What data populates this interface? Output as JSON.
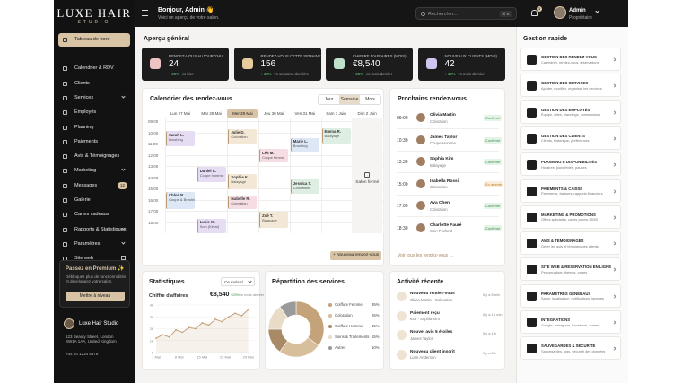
{
  "sidebar": {
    "logo": "LUXE HAIR",
    "logo_subtitle": "STUDIO",
    "nav": [
      "Tableau de bord",
      "Calendrier & RDV",
      "Clients",
      "Services",
      "Employés",
      "Planning",
      "Paiements",
      "Avis & Témoignages",
      "Marketing",
      "Messages",
      "Galerie",
      "Cartes cadeaux",
      "Rapports & Statistiques",
      "Paramètres",
      "Site web"
    ],
    "messages_badge": "12",
    "premium": {
      "title": "Passez en Premium ✨",
      "text": "Débloquez plus de fonctionnalités et développez votre salon.",
      "button": "Mettre à niveau"
    },
    "salon": {
      "name": "Luxe Hair Studio",
      "address": "123 Beauty Street, London SW1A 1AA, United Kingdom",
      "phone": "+44 20 1234 5678"
    }
  },
  "topbar": {
    "greeting": "Bonjour, Admin 👋",
    "subtitle": "Voici un aperçu de votre salon.",
    "search": "Rechercher...",
    "shortcut": "⌘ K",
    "notifications": "3",
    "user": "Admin",
    "role": "Propriétaire"
  },
  "overview": {
    "title": "Aperçu général",
    "stats": [
      {
        "label": "RENDEZ-VOUS AUJOURD'HUI",
        "value": "24",
        "change": "↑ 20%",
        "note": "vs hier"
      },
      {
        "label": "RENDEZ-VOUS CETTE SEMAINE",
        "value": "156",
        "change": "↑ 18%",
        "note": "vs semaine dernière"
      },
      {
        "label": "CHIFFRE D'AFFAIRES (MOIS)",
        "value": "€8,540",
        "change": "↑ 25%",
        "note": "vs mois dernier"
      },
      {
        "label": "NOUVEAUX CLIENTS (MOIS)",
        "value": "42",
        "change": "↑ 12%",
        "note": "vs mois dernier"
      }
    ]
  },
  "calendar": {
    "title": "Calendrier des rendez-vous",
    "views": [
      "Jour",
      "Semaine",
      "Mois"
    ],
    "days": [
      "Lun 27 Mai",
      "Mar 28 Mai",
      "Mer 29 Mai",
      "Jeu 30 Mai",
      "Ven 31 Mai",
      "Sam 1 Juin",
      "Dim 2 Juin"
    ],
    "hours": [
      "09:00",
      "10:00",
      "11:00",
      "12:00",
      "13:00",
      "14:00",
      "15:00",
      "16:00",
      "17:00",
      "18:00"
    ],
    "closed": "Salon fermé",
    "events": [
      {
        "name": "Sarah L.",
        "service": "Brushing"
      },
      {
        "name": "Julie D.",
        "service": "Coloration"
      },
      {
        "name": "Emma R.",
        "service": "Balayage"
      },
      {
        "name": "Marie L.",
        "service": "Brushing"
      },
      {
        "name": "Léa M.",
        "service": "Coupe femme"
      },
      {
        "name": "Daniel K.",
        "service": "Coupe homme"
      },
      {
        "name": "Sophie K.",
        "service": "Balayage"
      },
      {
        "name": "Jessica T.",
        "service": "Coloration"
      },
      {
        "name": "Chloé B.",
        "service": "Coupe & Brushing"
      },
      {
        "name": "Isabelle R.",
        "service": "Coloration"
      },
      {
        "name": "Lucie M.",
        "service": "Soin (Kérat)"
      },
      {
        "name": "Zoé T.",
        "service": "Balayage"
      }
    ],
    "button": "+ Nouveau rendez-vous"
  },
  "upcoming": {
    "title": "Prochains rendez-vous",
    "items": [
      {
        "time": "09:00",
        "name": "Olivia Martin",
        "service": "Coloration",
        "status": "Confirmé"
      },
      {
        "time": "10:30",
        "name": "James Taylor",
        "service": "Coupe Homme",
        "status": "Confirmé"
      },
      {
        "time": "13:30",
        "name": "Sophia Kim",
        "service": "Balayage",
        "status": "Confirmé"
      },
      {
        "time": "15:00",
        "name": "Isabella Rossi",
        "service": "Coloration",
        "status": "En attente"
      },
      {
        "time": "17:00",
        "name": "Ava Chen",
        "service": "Coloration",
        "status": "Confirmé"
      },
      {
        "time": "18:30",
        "name": "Charlotte Fauré",
        "service": "Soin Profond",
        "status": "Confirmé"
      }
    ],
    "link": "Voir tous les rendez-vous →"
  },
  "statistics": {
    "title": "Statistiques",
    "period": "Ce mois-ci",
    "metric": "Chiffre d'affaires",
    "value": "€8,540",
    "change": "↑ 25%",
    "note": "vs mois dernier",
    "chart": {
      "type": "line",
      "color": "#c4a27a",
      "x": [
        1,
        3,
        5,
        7,
        9,
        11,
        13,
        15,
        17,
        19,
        21,
        23,
        25,
        27,
        29
      ],
      "values": [
        1200,
        1500,
        1300,
        1900,
        1700,
        2100,
        2000,
        2500,
        2300,
        2800,
        2600,
        3000,
        3300,
        3100,
        3600
      ],
      "xlim": [
        1,
        31
      ],
      "xticks": [
        {
          "value": 1,
          "label": "1 Mai"
        },
        {
          "value": 8,
          "label": "8 Mai"
        },
        {
          "value": 15,
          "label": "15 Mai"
        },
        {
          "value": 22,
          "label": "22 Mai"
        },
        {
          "value": 29,
          "label": "29 Mai"
        }
      ],
      "ylim": [
        0,
        4000
      ],
      "yticks": [
        0,
        {
          "value": 1000,
          "label": "1k"
        },
        {
          "value": 2000,
          "label": "2k"
        },
        {
          "value": 3000,
          "label": "3k"
        },
        {
          "value": 4000,
          "label": "4k"
        }
      ],
      "grid": true
    }
  },
  "services": {
    "title": "Répartition des services",
    "chart": {
      "type": "pie",
      "categories": [
        "Coiffure Femme",
        "Coloration",
        "Coiffure Homme",
        "Soins & Traitements",
        "Autres"
      ],
      "values": [
        35,
        25,
        15,
        15,
        10
      ],
      "value_labels": [
        "35%",
        "25%",
        "15%",
        "15%",
        "10%"
      ],
      "colors": [
        "#c4a27a",
        "#d8bf9c",
        "#a98a66",
        "#e9dcc6",
        "#9a9a9a"
      ]
    }
  },
  "activity": {
    "title": "Activité récente",
    "items": [
      {
        "title": "Nouveau rendez-vous",
        "detail": "Olivia Martin - Coloration",
        "time": "Il y a 5 min"
      },
      {
        "title": "Paiement reçu",
        "detail": "€45 - Sophia Kim",
        "time": "Il y a 15 min"
      },
      {
        "title": "Nouvel avis 5 étoiles",
        "detail": "James Taylor",
        "time": "Il y a 1 h"
      },
      {
        "title": "Nouveau client inscrit",
        "detail": "Liam Anderson",
        "time": "Il y a 2 h"
      }
    ]
  },
  "quick_actions": {
    "title": "Gestion rapide",
    "items": [
      {
        "title": "GESTION DES RENDEZ-VOUS",
        "description": "Calendrier, rendez-vous, réservations"
      },
      {
        "title": "GESTION DES SERVICES",
        "description": "Ajouter, modifier, organiser les services"
      },
      {
        "title": "GESTION DES EMPLOYÉS",
        "description": "Équipe, rôles, plannings, commissions"
      },
      {
        "title": "GESTION DES CLIENTS",
        "description": "Clients, historique, préférences"
      },
      {
        "title": "PLANNING & DISPONIBILITÉS",
        "description": "Horaires, jours fériés, pauses"
      },
      {
        "title": "PAIEMENTS & CAISSE",
        "description": "Paiements, factures, rapports financiers"
      },
      {
        "title": "MARKETING & PROMOTIONS",
        "description": "Offres spéciales, codes promo, SMS"
      },
      {
        "title": "AVIS & TÉMOIGNAGES",
        "description": "Gérer les avis et témoignages clients"
      },
      {
        "title": "SITE WEB & RÉSERVATION EN LIGNE",
        "description": "Personnaliser, thèmes, pages"
      },
      {
        "title": "PARAMÈTRES GÉNÉRAUX",
        "description": "Salon, localisation, notifications, langues"
      },
      {
        "title": "INTÉGRATIONS",
        "description": "Google, Instagram, Facebook, autres"
      },
      {
        "title": "SAUVEGARDES & SÉCURITÉ",
        "description": "Sauvegardes, logs, sécurité des données"
      }
    ]
  }
}
